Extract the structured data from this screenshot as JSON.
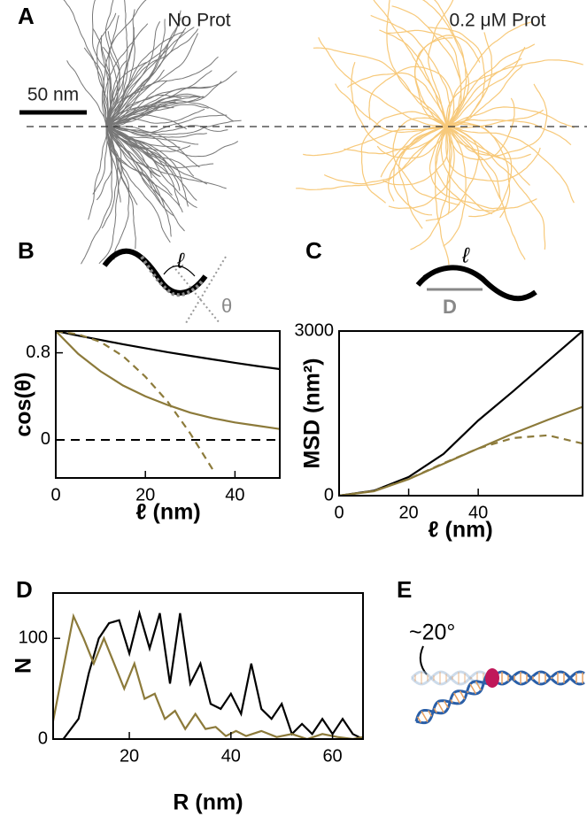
{
  "panel_a": {
    "label": "A",
    "left_title": "No Prot",
    "right_title": "0.2 μM Prot",
    "scale_bar": "50 nm"
  },
  "diagram_b": {
    "length": "ℓ",
    "angle": "θ"
  },
  "diagram_c": {
    "length": "ℓ",
    "distance": "D"
  },
  "panel_e": {
    "label": "E",
    "angle": "~20°"
  },
  "chart_data": [
    {
      "type": "line",
      "label": "B",
      "xlabel": "ℓ (nm)",
      "ylabel": "cos(θ)",
      "xlim": [
        0,
        50
      ],
      "ylim": [
        -0.35,
        1.0
      ],
      "xticks": [
        0,
        20,
        40
      ],
      "yticks": [
        0,
        0.8
      ],
      "reference_line": 0,
      "series": [
        {
          "color": "#000000",
          "style": "solid",
          "x": [
            0,
            5,
            10,
            15,
            20,
            25,
            30,
            35,
            40,
            45,
            50
          ],
          "values": [
            1,
            0.958,
            0.918,
            0.879,
            0.842,
            0.806,
            0.772,
            0.74,
            0.708,
            0.678,
            0.65
          ]
        },
        {
          "color": "#8c7a3a",
          "style": "solid",
          "x": [
            0,
            5,
            10,
            15,
            20,
            25,
            30,
            35,
            40,
            45,
            50
          ],
          "values": [
            1,
            0.79,
            0.63,
            0.5,
            0.4,
            0.32,
            0.25,
            0.2,
            0.16,
            0.13,
            0.1
          ]
        },
        {
          "color": "#8c7a3a",
          "style": "dashed",
          "x": [
            0,
            5,
            10,
            15,
            20,
            25,
            30,
            35
          ],
          "values": [
            1,
            0.97,
            0.9,
            0.77,
            0.58,
            0.35,
            0.06,
            -0.27
          ]
        }
      ]
    },
    {
      "type": "line",
      "label": "C",
      "xlabel": "ℓ (nm)",
      "ylabel": "MSD (nm²)",
      "xlim": [
        0,
        70
      ],
      "ylim": [
        0,
        3000
      ],
      "xticks": [
        0,
        20,
        40
      ],
      "yticks": [
        0,
        3000
      ],
      "series": [
        {
          "color": "#000000",
          "style": "solid",
          "x": [
            0,
            10,
            20,
            30,
            40,
            50,
            60,
            70
          ],
          "values": [
            0,
            90,
            340,
            760,
            1370,
            1900,
            2450,
            3000
          ]
        },
        {
          "color": "#8c7a3a",
          "style": "solid",
          "x": [
            0,
            10,
            20,
            30,
            40,
            50,
            60,
            70
          ],
          "values": [
            0,
            80,
            300,
            580,
            860,
            1130,
            1380,
            1620
          ]
        },
        {
          "color": "#8c7a3a",
          "style": "dashed",
          "x": [
            0,
            10,
            20,
            30,
            40,
            50,
            60,
            70
          ],
          "values": [
            0,
            85,
            305,
            590,
            860,
            1050,
            1100,
            950
          ]
        }
      ]
    },
    {
      "type": "line",
      "label": "D",
      "xlabel": "R (nm)",
      "ylabel": "N",
      "xlim": [
        5,
        66
      ],
      "ylim": [
        0,
        145
      ],
      "xticks": [
        20,
        40,
        60
      ],
      "yticks": [
        0,
        100
      ],
      "series": [
        {
          "color": "#000000",
          "style": "solid",
          "x": [
            7,
            10,
            12,
            14,
            16,
            18,
            20,
            22,
            24,
            26,
            28,
            30,
            32,
            34,
            36,
            38,
            40,
            42,
            44,
            46,
            48,
            50,
            52,
            54,
            56,
            58,
            60,
            62,
            64,
            66
          ],
          "values": [
            0,
            20,
            65,
            100,
            115,
            118,
            85,
            125,
            90,
            125,
            55,
            125,
            55,
            75,
            35,
            30,
            45,
            25,
            75,
            30,
            20,
            35,
            5,
            15,
            5,
            20,
            5,
            20,
            5,
            0
          ]
        },
        {
          "color": "#8c7a3a",
          "style": "solid",
          "x": [
            5,
            7,
            9,
            11,
            13,
            15,
            17,
            19,
            21,
            23,
            25,
            27,
            29,
            31,
            33,
            35,
            37,
            39,
            41,
            43,
            46,
            49,
            52,
            55,
            58,
            61,
            64,
            66
          ],
          "values": [
            18,
            70,
            122,
            100,
            75,
            100,
            75,
            50,
            75,
            40,
            45,
            20,
            28,
            10,
            25,
            10,
            12,
            3,
            8,
            3,
            8,
            2,
            5,
            0,
            5,
            2,
            0,
            2
          ]
        }
      ]
    }
  ]
}
